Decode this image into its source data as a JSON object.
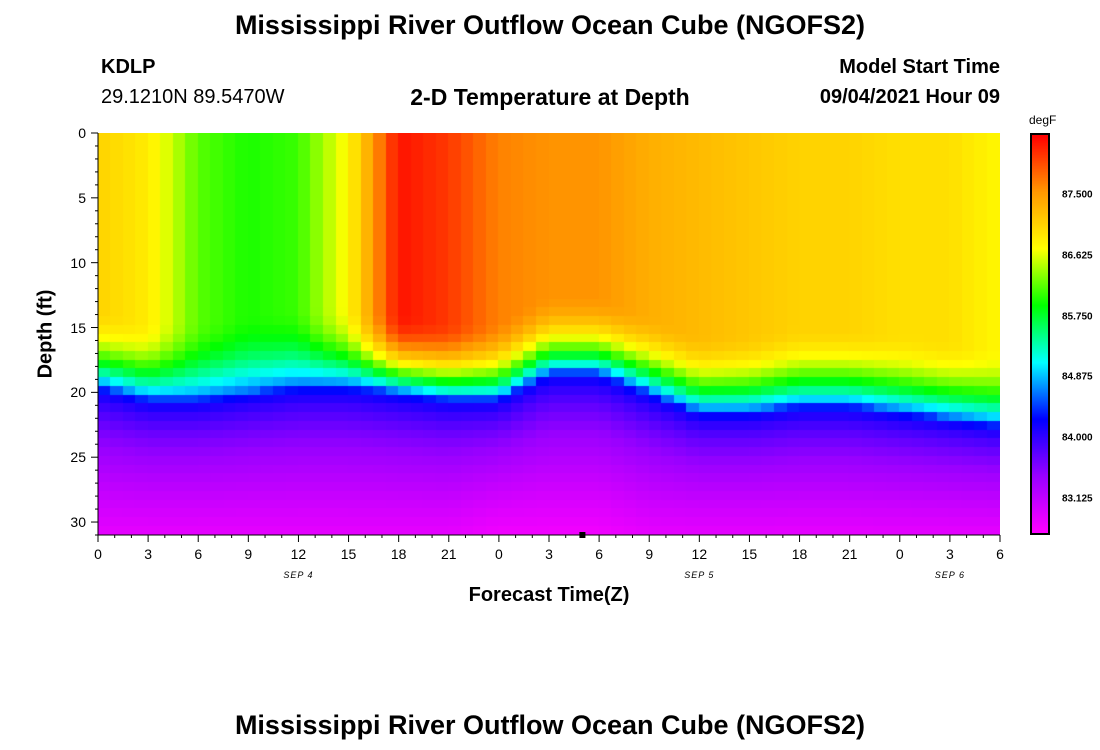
{
  "title": "Mississippi River Outflow Ocean Cube (NGOFS2)",
  "footer_title": "Mississippi River Outflow Ocean Cube (NGOFS2)",
  "station": "KDLP",
  "coords": "29.1210N  89.5470W",
  "subtitle": "2-D Temperature at Depth",
  "model_start_label": "Model Start Time",
  "model_start_value": "09/04/2021 Hour 09",
  "colors": {
    "scale": [
      "#ff00ff",
      "#9900ff",
      "#0000ff",
      "#00ffff",
      "#00ff00",
      "#ffff00",
      "#ff9900",
      "#ff0000"
    ]
  },
  "chart_data": {
    "type": "heatmap",
    "xlabel": "Forecast Time(Z)",
    "ylabel": "Depth (ft)",
    "x_ticks": [
      "0",
      "3",
      "6",
      "9",
      "12",
      "15",
      "18",
      "21",
      "0",
      "3",
      "6",
      "9",
      "12",
      "15",
      "18",
      "21",
      "0",
      "3",
      "6"
    ],
    "x_range_hours": [
      0,
      54
    ],
    "y_ticks": [
      "0",
      "5",
      "10",
      "15",
      "20",
      "25",
      "30"
    ],
    "ylim": [
      31,
      0
    ],
    "date_labels": [
      {
        "label": "SEP 4",
        "hour": 12
      },
      {
        "label": "SEP 5",
        "hour": 36
      },
      {
        "label": "SEP 6",
        "hour": 51
      }
    ],
    "colorbar": {
      "unit": "degF",
      "range": [
        82.6,
        88.4
      ],
      "labels": [
        "87.500",
        "86.625",
        "85.750",
        "84.875",
        "84.000",
        "83.125"
      ]
    },
    "marker": {
      "hour": 29,
      "depth": 31
    },
    "profiles": [
      {
        "hour": 0,
        "top": 87.1,
        "thermocline_ft": 19.5,
        "bottom": 82.8
      },
      {
        "hour": 3,
        "top": 86.9,
        "thermocline_ft": 20.5,
        "bottom": 82.8
      },
      {
        "hour": 6,
        "top": 86.2,
        "thermocline_ft": 20.5,
        "bottom": 82.8
      },
      {
        "hour": 9,
        "top": 86.0,
        "thermocline_ft": 20,
        "bottom": 82.8
      },
      {
        "hour": 12,
        "top": 86.1,
        "thermocline_ft": 19.5,
        "bottom": 82.8
      },
      {
        "hour": 15,
        "top": 86.8,
        "thermocline_ft": 19.5,
        "bottom": 82.8
      },
      {
        "hour": 18,
        "top": 88.3,
        "thermocline_ft": 20,
        "bottom": 82.8
      },
      {
        "hour": 21,
        "top": 88.1,
        "thermocline_ft": 20.5,
        "bottom": 82.8
      },
      {
        "hour": 24,
        "top": 87.7,
        "thermocline_ft": 20.5,
        "bottom": 82.7
      },
      {
        "hour": 27,
        "top": 87.6,
        "thermocline_ft": 18.5,
        "bottom": 82.7
      },
      {
        "hour": 30,
        "top": 87.6,
        "thermocline_ft": 18.5,
        "bottom": 82.7
      },
      {
        "hour": 33,
        "top": 87.4,
        "thermocline_ft": 20,
        "bottom": 82.8
      },
      {
        "hour": 36,
        "top": 87.3,
        "thermocline_ft": 21.5,
        "bottom": 82.8
      },
      {
        "hour": 39,
        "top": 87.2,
        "thermocline_ft": 21.5,
        "bottom": 82.8
      },
      {
        "hour": 42,
        "top": 87.1,
        "thermocline_ft": 21,
        "bottom": 82.8
      },
      {
        "hour": 45,
        "top": 87.1,
        "thermocline_ft": 21,
        "bottom": 82.8
      },
      {
        "hour": 48,
        "top": 87.0,
        "thermocline_ft": 21.5,
        "bottom": 82.8
      },
      {
        "hour": 51,
        "top": 87.0,
        "thermocline_ft": 22,
        "bottom": 82.8
      },
      {
        "hour": 54,
        "top": 86.8,
        "thermocline_ft": 22.5,
        "bottom": 82.8
      }
    ]
  }
}
